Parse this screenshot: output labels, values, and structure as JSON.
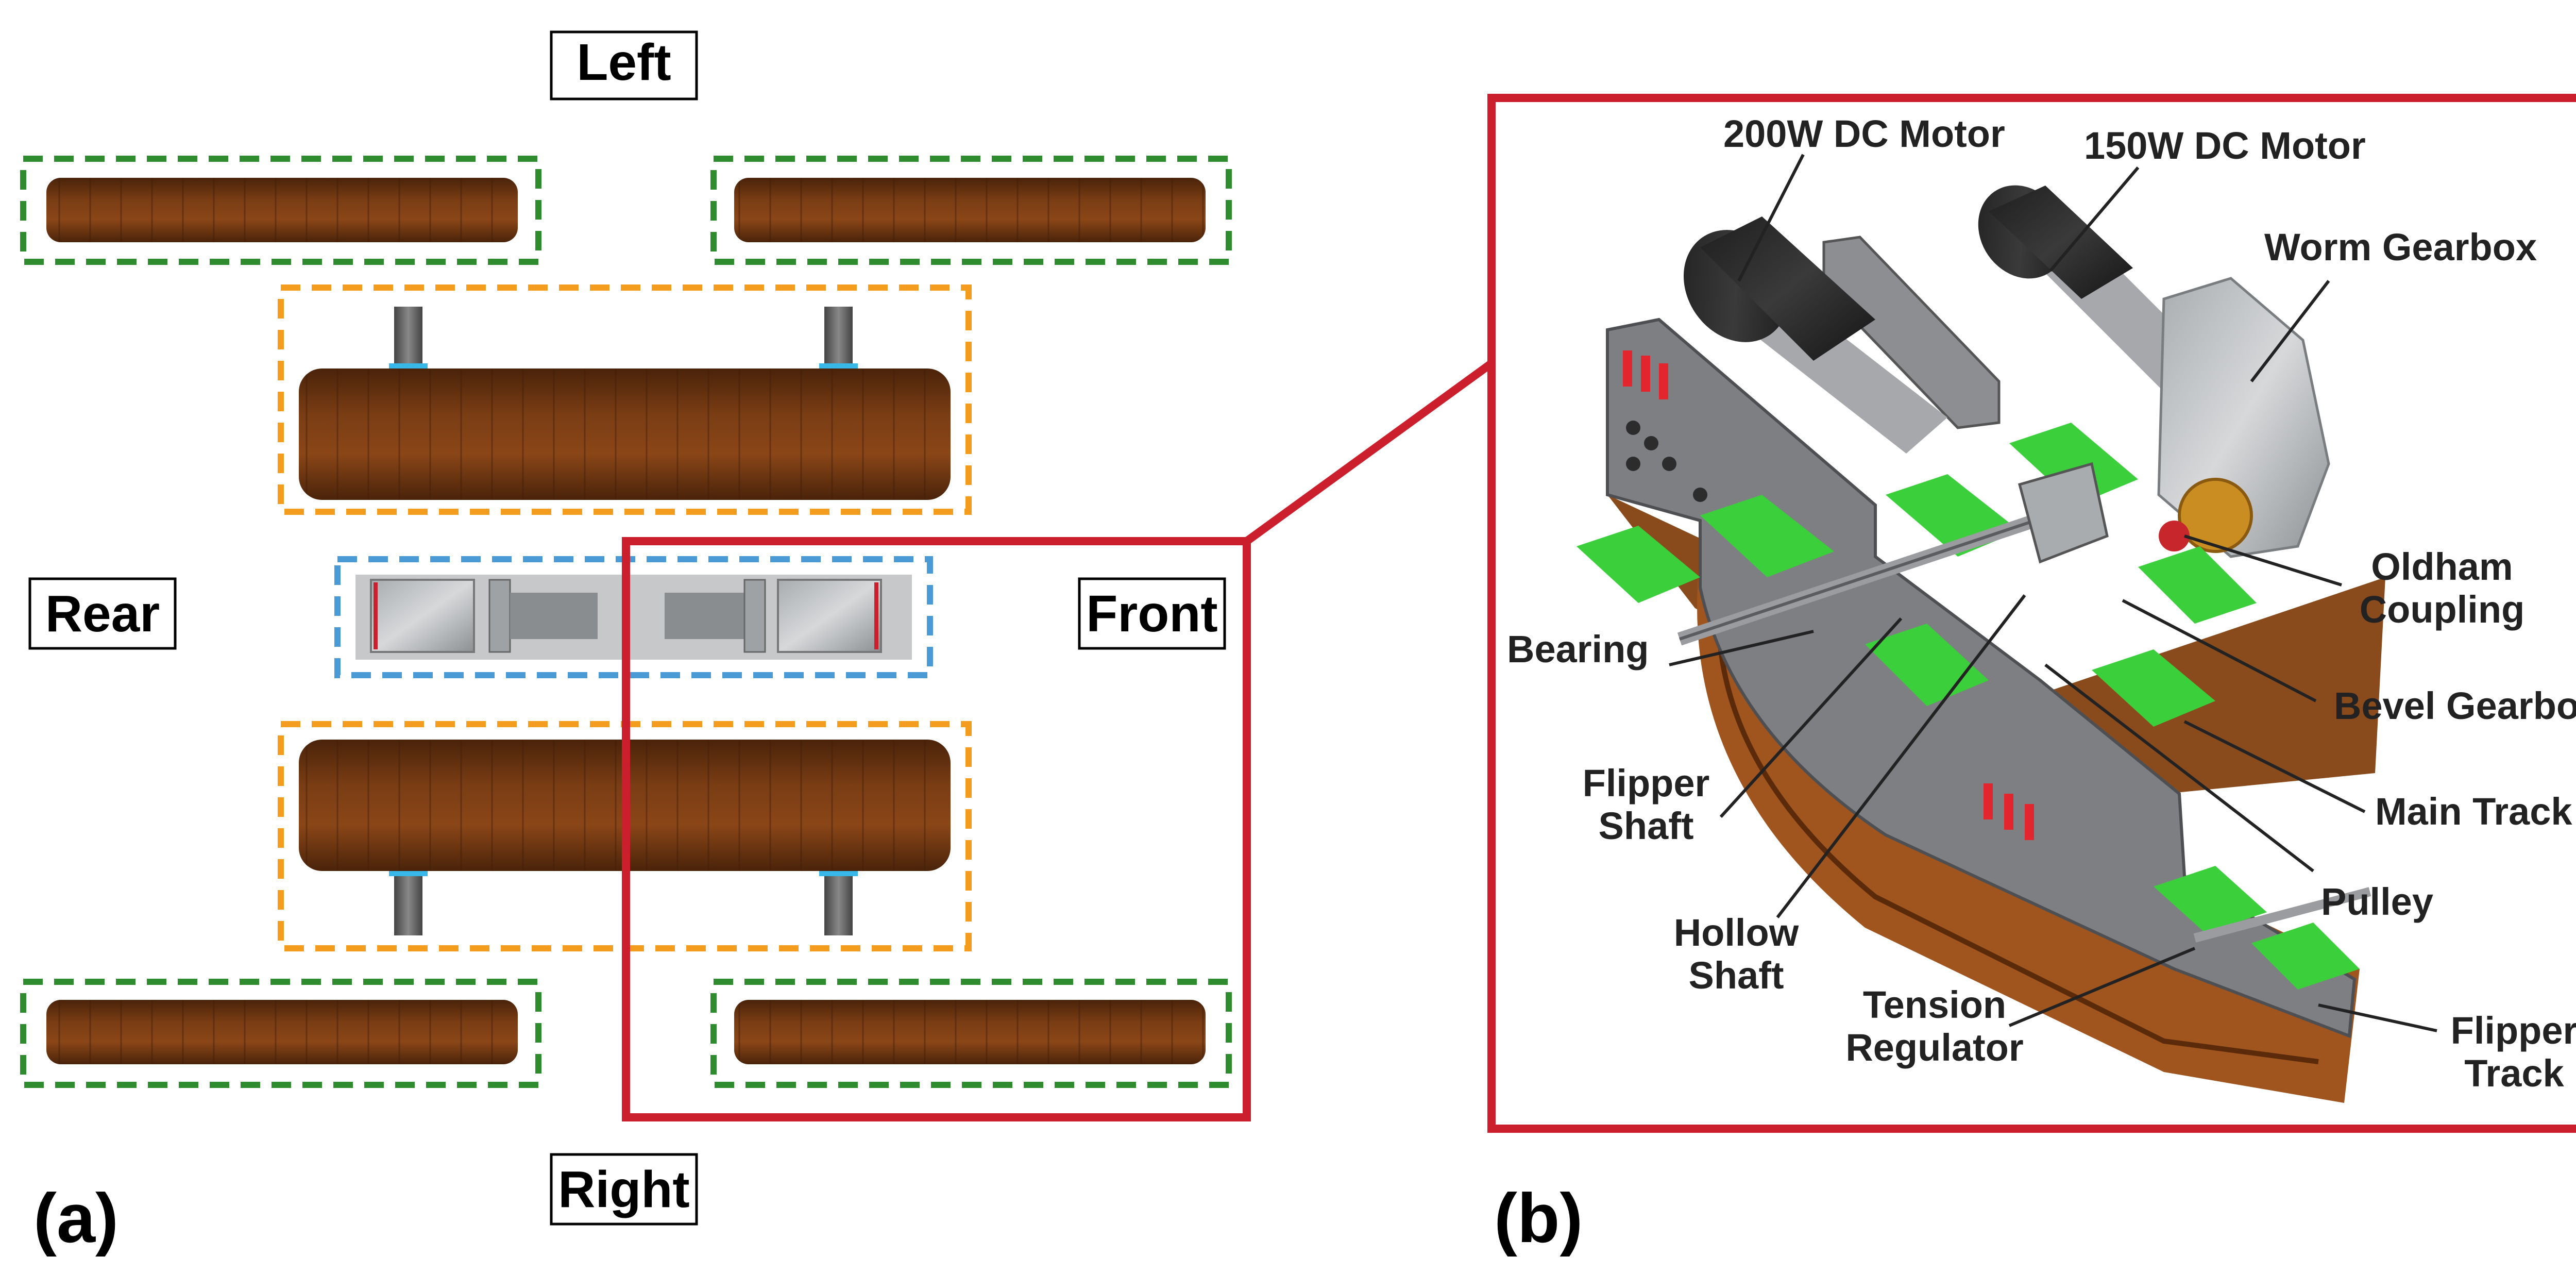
{
  "panel_a": {
    "tag": "(a)",
    "labels": {
      "left": "Left",
      "right": "Right",
      "rear": "Rear",
      "front": "Front"
    }
  },
  "panel_b": {
    "tag": "(b)",
    "callouts": {
      "motor200": "200W DC Motor",
      "motor150": "150W DC Motor",
      "worm": "Worm Gearbox",
      "oldham1": "Oldham",
      "oldham2": "Coupling",
      "bearing": "Bearing",
      "bevel": "Bevel Gearbox",
      "flipshaft1": "Flipper",
      "flipshaft2": "Shaft",
      "maintrack": "Main Track",
      "pulley": "Pulley",
      "hollow1": "Hollow",
      "hollow2": "Shaft",
      "tension1": "Tension",
      "tension2": "Regulator",
      "fliptrack1": "Flipper",
      "fliptrack2": "Track"
    }
  },
  "colors": {
    "red_frame": "#cc1f2d",
    "green_dash": "#2e8b2e",
    "orange_dash": "#f39c1e",
    "blue_dash": "#4a9ad6",
    "track_brown": "#6b3410",
    "part_green": "#3ccf3c",
    "frame_gray": "#7d7f82"
  }
}
